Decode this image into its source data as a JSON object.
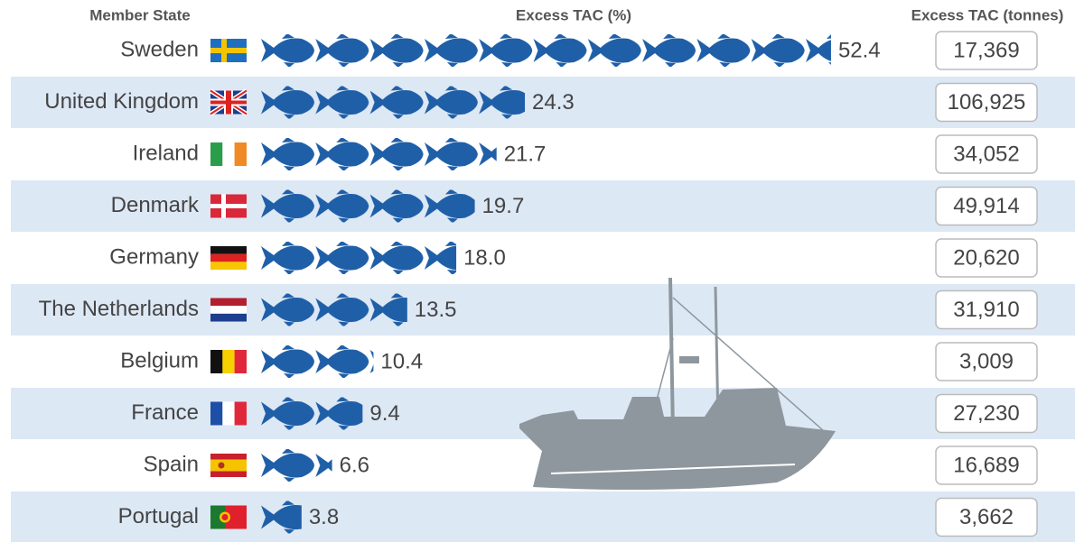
{
  "headers": {
    "member_state": "Member State",
    "excess_pct": "Excess TAC (%)",
    "excess_tonnes": "Excess TAC (tonnes)"
  },
  "chart_data": {
    "type": "pictogram",
    "categories": [
      "Sweden",
      "United Kingdom",
      "Ireland",
      "Denmark",
      "Germany",
      "The Netherlands",
      "Belgium",
      "France",
      "Spain",
      "Portugal"
    ],
    "values": [
      52.4,
      24.3,
      21.7,
      19.7,
      18.0,
      13.5,
      10.4,
      9.4,
      6.6,
      3.8
    ],
    "value_labels": [
      "52.4",
      "24.3",
      "21.7",
      "19.7",
      "18.0",
      "13.5",
      "10.4",
      "9.4",
      "6.6",
      "3.8"
    ],
    "color": "#1f5fa8",
    "tonnes": [
      17369,
      106925,
      34052,
      49914,
      20620,
      31910,
      3009,
      27230,
      16689,
      3662
    ],
    "tonnes_labels": [
      "17,369",
      "106,925",
      "34,052",
      "49,914",
      "20,620",
      "31,910",
      "3,009",
      "27,230",
      "16,689",
      "3,662"
    ]
  }
}
